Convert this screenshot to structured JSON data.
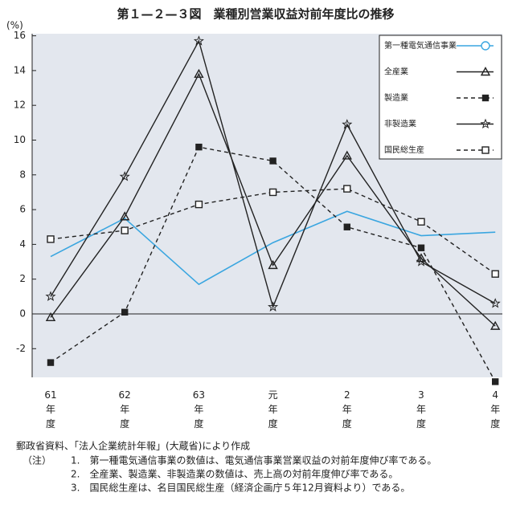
{
  "chart_data": {
    "type": "line",
    "title": "第１—２—３図　業種別営業収益対前年度比の推移",
    "y_label": "(%)",
    "categories": [
      "61年度",
      "62年度",
      "63年度",
      "元年度",
      "2年度",
      "3年度",
      "4年度"
    ],
    "series": [
      {
        "name": "第一種電気通信事業",
        "color": "#3aa6e0",
        "marker": "circle",
        "dashed": false,
        "point_markers": false,
        "values": [
          3.3,
          5.5,
          1.7,
          4.1,
          5.9,
          4.5,
          4.7
        ]
      },
      {
        "name": "全産業",
        "color": "#222222",
        "marker": "triangle",
        "dashed": false,
        "point_markers": true,
        "values": [
          -0.2,
          5.6,
          13.8,
          2.8,
          9.1,
          3.2,
          -0.7
        ]
      },
      {
        "name": "製造業",
        "color": "#222222",
        "marker": "square-filled",
        "dashed": true,
        "point_markers": true,
        "values": [
          -2.8,
          0.1,
          9.6,
          8.8,
          5.0,
          3.8,
          -3.9
        ]
      },
      {
        "name": "非製造業",
        "color": "#222222",
        "marker": "star",
        "dashed": false,
        "point_markers": true,
        "values": [
          1.0,
          7.9,
          15.7,
          0.4,
          10.9,
          3.0,
          0.6
        ]
      },
      {
        "name": "国民総生産",
        "color": "#222222",
        "marker": "square-open",
        "dashed": true,
        "point_markers": true,
        "values": [
          4.3,
          4.8,
          6.3,
          7.0,
          7.2,
          5.3,
          2.3
        ]
      }
    ],
    "ylim": [
      -3.65,
      16.12
    ],
    "yticks": [
      -2,
      0,
      2,
      4,
      6,
      8,
      10,
      12,
      14,
      16
    ],
    "grid": false,
    "legend_position": "upper-right",
    "notes": [
      "郵政省資料、「法人企業統計年報」(大蔵省)により作成",
      "（注）",
      "1.　第一種電気通信事業の数値は、電気通信事業営業収益の対前年度伸び率である。",
      "2.　全産業、製造業、非製造業の数値は、売上高の対前年度伸び率である。",
      "3.　国民総生産は、名目国民総生産（経済企画庁５年12月資料より）である。"
    ]
  }
}
